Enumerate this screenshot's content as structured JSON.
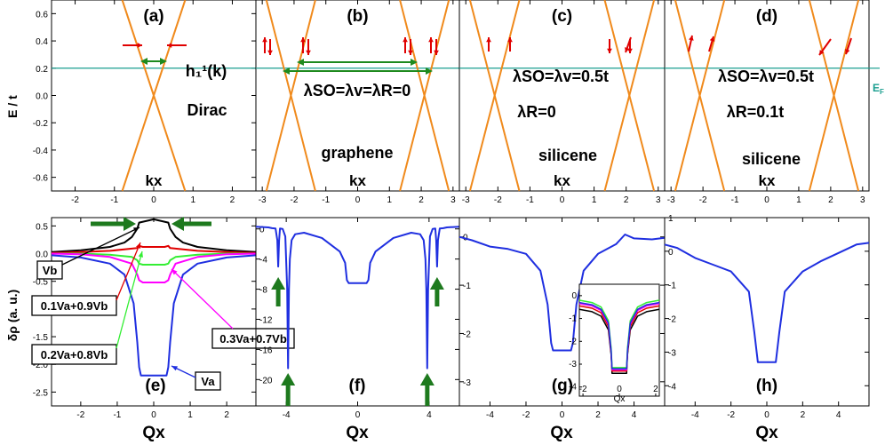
{
  "figure": {
    "y_label_top": "E / t",
    "y_label_bottom": "δρ (a. u.)",
    "ef_label": "E",
    "ef_sub": "F"
  },
  "chart_data": [
    {
      "id": "a",
      "type": "line",
      "panel_label": "(a)",
      "xlabel": "kx",
      "xlim": [
        -2.6,
        2.6
      ],
      "ylim": [
        -0.7,
        0.7
      ],
      "xticks": [
        -2,
        -1,
        0,
        1,
        2
      ],
      "yticks": [
        -0.6,
        -0.4,
        -0.2,
        0.0,
        0.2,
        0.4,
        0.6
      ],
      "ytick_labels": [
        "-0.6",
        "-0.4",
        "-0.2",
        "0.0",
        "0.2",
        "0.4",
        "0.6"
      ],
      "fermi_level": 0.2,
      "annotation_lines": [
        "h₁¹(k)",
        "Dirac"
      ],
      "bands": [
        {
          "name": "",
          "x": [
            -0.8,
            0.0,
            0.8
          ],
          "y": [
            -0.7,
            0.0,
            0.7
          ]
        },
        {
          "name": "",
          "x": [
            -0.8,
            0.0,
            0.8
          ],
          "y": [
            0.7,
            0.0,
            -0.7
          ]
        }
      ],
      "color": "#f08a1c"
    },
    {
      "id": "b",
      "type": "line",
      "panel_label": "(b)",
      "xlabel": "kx",
      "xlim": [
        -3.2,
        3.2
      ],
      "ylim": [
        -0.7,
        0.7
      ],
      "xticks": [
        -3,
        -2,
        -1,
        0,
        1,
        2,
        3
      ],
      "fermi_level": 0.2,
      "annotation_lines": [
        "λSO=λv=λR=0",
        "graphene"
      ],
      "bands": [
        {
          "name": "",
          "x": [
            -2.87,
            -2.1,
            -1.33
          ],
          "y": [
            -0.7,
            0.0,
            0.7
          ]
        },
        {
          "name": "",
          "x": [
            -2.87,
            -2.1,
            -1.33
          ],
          "y": [
            0.7,
            0.0,
            -0.7
          ]
        },
        {
          "name": "",
          "x": [
            1.33,
            2.1,
            2.87
          ],
          "y": [
            -0.7,
            0.0,
            0.7
          ]
        },
        {
          "name": "",
          "x": [
            1.33,
            2.1,
            2.87
          ],
          "y": [
            0.7,
            0.0,
            -0.7
          ]
        }
      ],
      "color": "#f08a1c"
    },
    {
      "id": "c",
      "type": "line",
      "panel_label": "(c)",
      "xlabel": "kx",
      "xlim": [
        -3.2,
        3.2
      ],
      "ylim": [
        -0.7,
        0.7
      ],
      "xticks": [
        -3,
        -2,
        -1,
        0,
        1,
        2,
        3
      ],
      "fermi_level": 0.2,
      "annotation_lines": [
        "λSO=λv=0.5t",
        "λR=0",
        "silicene"
      ],
      "bands": [
        {
          "name": "",
          "x": [
            -2.87,
            -2.1,
            -1.33
          ],
          "y": [
            -0.7,
            0.0,
            0.7
          ]
        },
        {
          "name": "",
          "x": [
            -2.87,
            -2.1,
            -1.33
          ],
          "y": [
            0.7,
            0.0,
            -0.7
          ]
        },
        {
          "name": "",
          "x": [
            1.33,
            2.1,
            2.87
          ],
          "y": [
            -0.7,
            0.0,
            0.7
          ]
        },
        {
          "name": "",
          "x": [
            1.33,
            2.1,
            2.87
          ],
          "y": [
            0.7,
            0.0,
            -0.7
          ]
        }
      ],
      "color": "#f08a1c"
    },
    {
      "id": "d",
      "type": "line",
      "panel_label": "(d)",
      "xlabel": "kx",
      "xlim": [
        -3.2,
        3.2
      ],
      "ylim": [
        -0.7,
        0.7
      ],
      "xticks": [
        -3,
        -2,
        -1,
        0,
        1,
        2,
        3
      ],
      "fermi_level": 0.2,
      "annotation_lines": [
        "λSO=λv=0.5t",
        "λR=0.1t",
        "silicene"
      ],
      "bands": [
        {
          "name": "",
          "x": [
            -2.87,
            -2.1,
            -1.33
          ],
          "y": [
            -0.7,
            0.0,
            0.7
          ]
        },
        {
          "name": "",
          "x": [
            -2.87,
            -2.1,
            -1.33
          ],
          "y": [
            0.7,
            0.0,
            -0.7
          ]
        },
        {
          "name": "",
          "x": [
            1.33,
            2.1,
            2.87
          ],
          "y": [
            -0.7,
            0.0,
            0.7
          ]
        },
        {
          "name": "",
          "x": [
            1.33,
            2.1,
            2.87
          ],
          "y": [
            0.7,
            0.0,
            -0.7
          ]
        }
      ],
      "color": "#f08a1c"
    },
    {
      "id": "e",
      "type": "line",
      "panel_label": "(e)",
      "xlabel": "Qx",
      "xlim": [
        -2.8,
        2.8
      ],
      "ylim": [
        -2.75,
        0.65
      ],
      "xticks": [
        -2,
        -1,
        0,
        1,
        2
      ],
      "yticks": [
        -2.5,
        -2.0,
        -1.5,
        -1.0,
        -0.5,
        0.0,
        0.5
      ],
      "ytick_labels": [
        "-2.5",
        "-2.0",
        "-1.5",
        "-1.0",
        "-0.5",
        "0.0",
        "0.5"
      ],
      "series": [
        {
          "name": "Va",
          "color": "#1f2fe0",
          "x": [
            -2.8,
            -2.0,
            -1.2,
            -0.8,
            -0.55,
            -0.45,
            -0.4,
            -0.35,
            0.35,
            0.4,
            0.45,
            0.55,
            0.8,
            1.2,
            2.0,
            2.8
          ],
          "y": [
            -0.03,
            -0.07,
            -0.18,
            -0.38,
            -0.9,
            -1.6,
            -2.05,
            -2.2,
            -2.2,
            -2.05,
            -1.6,
            -0.9,
            -0.38,
            -0.18,
            -0.07,
            -0.03
          ]
        },
        {
          "name": "Vb",
          "color": "#000000",
          "x": [
            -2.8,
            -2.0,
            -1.2,
            -0.8,
            -0.6,
            -0.45,
            -0.4,
            0.0,
            0.4,
            0.45,
            0.6,
            0.8,
            1.2,
            2.0,
            2.8
          ],
          "y": [
            0.03,
            0.06,
            0.12,
            0.2,
            0.3,
            0.45,
            0.56,
            0.62,
            0.56,
            0.45,
            0.3,
            0.2,
            0.12,
            0.06,
            0.03
          ]
        },
        {
          "name": "0.1Va+0.9Vb",
          "color": "#e00000",
          "x": [
            -2.8,
            -2.0,
            -1.2,
            -0.6,
            -0.45,
            -0.4,
            -0.3,
            0.3,
            0.4,
            0.45,
            0.6,
            1.2,
            2.0,
            2.8
          ],
          "y": [
            0.01,
            0.03,
            0.05,
            0.09,
            0.1,
            0.14,
            0.12,
            0.12,
            0.14,
            0.1,
            0.09,
            0.05,
            0.03,
            0.01
          ]
        },
        {
          "name": "0.2Va+0.8Vb",
          "color": "#33ee33",
          "x": [
            -2.8,
            -2.0,
            -1.2,
            -0.6,
            -0.45,
            -0.4,
            -0.3,
            0.3,
            0.4,
            0.45,
            0.6,
            1.2,
            2.0,
            2.8
          ],
          "y": [
            0.0,
            0.0,
            -0.02,
            -0.06,
            -0.12,
            -0.18,
            -0.2,
            -0.2,
            -0.18,
            -0.12,
            -0.06,
            -0.02,
            0.0,
            0.0
          ]
        },
        {
          "name": "0.3Va+0.7Vb",
          "color": "#ff00ff",
          "x": [
            -2.8,
            -2.0,
            -1.2,
            -0.6,
            -0.45,
            -0.4,
            -0.3,
            0.3,
            0.4,
            0.45,
            0.6,
            1.2,
            2.0,
            2.8
          ],
          "y": [
            0.0,
            -0.01,
            -0.06,
            -0.18,
            -0.38,
            -0.48,
            -0.52,
            -0.52,
            -0.48,
            -0.38,
            -0.18,
            -0.06,
            -0.01,
            0.0
          ]
        }
      ],
      "labels": {
        "va": "Va",
        "vb": "Vb",
        "mix1": "0.1Va+0.9Vb",
        "mix2": "0.2Va+0.8Vb",
        "mix3": "0.3Va+0.7Vb"
      }
    },
    {
      "id": "f",
      "type": "line",
      "panel_label": "(f)",
      "xlabel": "Qx",
      "xlim": [
        -5.7,
        5.7
      ],
      "ylim": [
        -23.5,
        1.5
      ],
      "xticks": [
        -4,
        0,
        4
      ],
      "yticks": [
        -20,
        -16,
        -12,
        -8,
        -4,
        0
      ],
      "ytick_labels": [
        "-20",
        "-16",
        "-12",
        "-8",
        "-4",
        "0"
      ],
      "series": [
        {
          "name": "",
          "color": "#1f2fe0",
          "x": [
            -5.7,
            -5.0,
            -4.8,
            -4.6,
            -4.5,
            -4.45,
            -4.4,
            -4.35,
            -4.2,
            -4.05,
            -3.95,
            -3.9,
            -3.85,
            -3.8,
            -3.7,
            -3.5,
            -3.0,
            -2.0,
            -1.0,
            -0.7,
            -0.6,
            -0.5,
            0.5,
            0.6,
            0.7,
            1.0,
            2.0,
            3.0,
            3.5,
            3.7,
            3.8,
            3.85,
            3.9,
            3.95,
            4.05,
            4.2,
            4.35,
            4.4,
            4.45,
            4.5,
            4.6,
            4.8,
            5.0,
            5.7
          ],
          "y": [
            0.3,
            0.2,
            0.1,
            0.05,
            -1.5,
            -5.0,
            -1.5,
            0.05,
            0.0,
            -1.0,
            -8.0,
            -18.5,
            -8.0,
            -4.0,
            -1.5,
            -0.7,
            -0.5,
            -1.2,
            -3.0,
            -4.5,
            -6.8,
            -7.2,
            -7.2,
            -6.8,
            -4.5,
            -3.0,
            -1.2,
            -0.5,
            -0.7,
            -1.5,
            -4.0,
            -8.0,
            -18.5,
            -8.0,
            -1.0,
            0.0,
            0.05,
            -1.5,
            -5.0,
            -1.5,
            0.05,
            0.1,
            0.2,
            0.3
          ]
        }
      ]
    },
    {
      "id": "g",
      "type": "line",
      "panel_label": "(g)",
      "xlabel": "Qx",
      "xlim": [
        -5.7,
        5.7
      ],
      "ylim": [
        -3.5,
        0.4
      ],
      "xticks": [
        -4,
        -2,
        0,
        2,
        4
      ],
      "yticks": [
        -3,
        -2,
        -1,
        0
      ],
      "ytick_labels": [
        "-3",
        "-2",
        "-1",
        "0"
      ],
      "series": [
        {
          "name": "",
          "color": "#1f2fe0",
          "x": [
            -5.7,
            -5.0,
            -4.0,
            -3.0,
            -2.0,
            -1.2,
            -0.8,
            -0.6,
            -0.5,
            0.5,
            0.6,
            0.8,
            1.2,
            2.0,
            3.0,
            3.5,
            4.0,
            5.0,
            5.7
          ],
          "y": [
            0.0,
            -0.07,
            -0.2,
            -0.25,
            -0.35,
            -0.7,
            -1.4,
            -2.2,
            -2.35,
            -2.35,
            -2.2,
            -1.4,
            -0.7,
            -0.35,
            -0.15,
            0.05,
            -0.03,
            -0.05,
            -0.02
          ]
        }
      ],
      "inset": {
        "xlabel": "Qx",
        "xlim": [
          -2.2,
          2.2
        ],
        "ylim": [
          -4.4,
          0.5
        ],
        "xticks": [
          -2,
          0,
          2
        ],
        "yticks": [
          -4,
          -3,
          -2,
          -1,
          0
        ],
        "ytick_labels": [
          "-4",
          "-3",
          "-2",
          "-1",
          "0"
        ],
        "series": [
          {
            "name": "",
            "color": "#000000",
            "x": [
              -2.2,
              -1.5,
              -1.0,
              -0.6,
              -0.45,
              -0.4,
              0.4,
              0.45,
              0.6,
              1.0,
              1.5,
              2.2
            ],
            "y": [
              -0.6,
              -0.7,
              -0.9,
              -1.5,
              -2.6,
              -3.4,
              -3.4,
              -2.6,
              -1.5,
              -0.9,
              -0.7,
              -0.6
            ]
          },
          {
            "name": "",
            "color": "#e00000",
            "x": [
              -2.2,
              -1.5,
              -1.0,
              -0.6,
              -0.45,
              -0.4,
              0.4,
              0.45,
              0.6,
              1.0,
              1.5,
              2.2
            ],
            "y": [
              -0.45,
              -0.55,
              -0.75,
              -1.35,
              -2.5,
              -3.3,
              -3.3,
              -2.5,
              -1.35,
              -0.75,
              -0.55,
              -0.45
            ]
          },
          {
            "name": "",
            "color": "#ff00ff",
            "x": [
              -2.2,
              -1.5,
              -1.0,
              -0.6,
              -0.45,
              -0.4,
              0.4,
              0.45,
              0.6,
              1.0,
              1.5,
              2.2
            ],
            "y": [
              -0.35,
              -0.45,
              -0.65,
              -1.25,
              -2.45,
              -3.25,
              -3.25,
              -2.45,
              -1.25,
              -0.65,
              -0.45,
              -0.35
            ]
          },
          {
            "name": "",
            "color": "#33ee33",
            "x": [
              -2.2,
              -1.5,
              -1.0,
              -0.6,
              -0.45,
              -0.4,
              0.4,
              0.45,
              0.6,
              1.0,
              1.5,
              2.2
            ],
            "y": [
              -0.2,
              -0.3,
              -0.5,
              -1.1,
              -2.3,
              -3.15,
              -3.15,
              -2.3,
              -1.1,
              -0.5,
              -0.3,
              -0.2
            ]
          },
          {
            "name": "",
            "color": "#1f2fe0",
            "x": [
              -2.2,
              -1.5,
              -1.0,
              -0.6,
              -0.45,
              -0.4,
              0.4,
              0.45,
              0.6,
              1.0,
              1.5,
              2.2
            ],
            "y": [
              -0.3,
              -0.4,
              -0.6,
              -1.2,
              -2.4,
              -3.2,
              -3.2,
              -2.4,
              -1.2,
              -0.6,
              -0.4,
              -0.3
            ]
          }
        ]
      }
    },
    {
      "id": "h",
      "type": "line",
      "panel_label": "(h)",
      "xlabel": "Qx",
      "xlim": [
        -5.7,
        5.7
      ],
      "ylim": [
        -4.6,
        1.0
      ],
      "xticks": [
        -4,
        -2,
        0,
        2,
        4
      ],
      "yticks": [
        -4,
        -3,
        -2,
        -1,
        0,
        1
      ],
      "ytick_labels": [
        "-4",
        "-3",
        "-2",
        "-1",
        "0",
        "1"
      ],
      "series": [
        {
          "name": "",
          "color": "#1f2fe0",
          "x": [
            -5.7,
            -5.0,
            -4.0,
            -3.0,
            -2.0,
            -1.0,
            -0.7,
            -0.5,
            0.5,
            0.7,
            1.0,
            2.0,
            3.0,
            4.0,
            5.0,
            5.7
          ],
          "y": [
            0.2,
            0.1,
            -0.2,
            -0.4,
            -0.6,
            -1.2,
            -2.4,
            -3.3,
            -3.3,
            -2.4,
            -1.2,
            -0.6,
            -0.3,
            -0.05,
            0.2,
            0.25
          ]
        }
      ]
    }
  ]
}
